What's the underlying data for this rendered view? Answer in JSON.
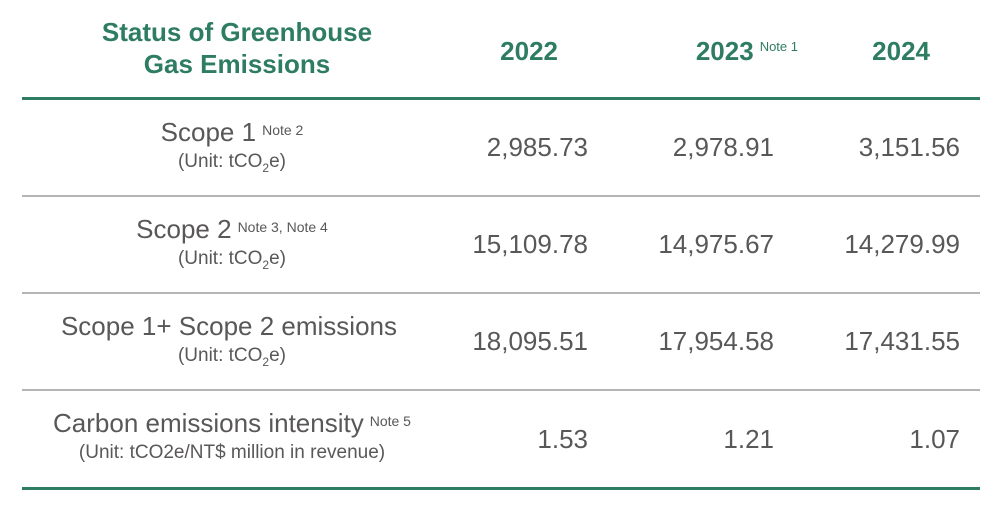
{
  "header": {
    "title_line1": "Status of Greenhouse",
    "title_line2": "Gas Emissions",
    "years": [
      {
        "label": "2022",
        "note": ""
      },
      {
        "label": "2023",
        "note": "Note 1"
      },
      {
        "label": "2024",
        "note": ""
      }
    ]
  },
  "rows": [
    {
      "label": "Scope 1",
      "note": "Note 2",
      "unit_prefix": "(Unit:  tCO",
      "unit_sub": "2",
      "unit_suffix": "e)",
      "values": [
        "2,985.73",
        "2,978.91",
        "3,151.56"
      ]
    },
    {
      "label": "Scope 2",
      "note": "Note 3, Note 4",
      "unit_prefix": "(Unit:  tCO",
      "unit_sub": "2",
      "unit_suffix": "e)",
      "values": [
        "15,109.78",
        "14,975.67",
        "14,279.99"
      ]
    },
    {
      "label": "Scope 1+ Scope 2 emissions",
      "note": "",
      "unit_prefix": "(Unit:  tCO",
      "unit_sub": "2",
      "unit_suffix": "e)",
      "values": [
        "18,095.51",
        "17,954.58",
        "17,431.55"
      ]
    },
    {
      "label": "Carbon emissions intensity",
      "note": "Note 5",
      "unit_prefix": "(Unit:  tCO2e/NT$ million in revenue)",
      "unit_sub": "",
      "unit_suffix": "",
      "values": [
        "1.53",
        "1.21",
        "1.07"
      ]
    }
  ],
  "colors": {
    "accent": "#2e7d62",
    "text": "#595757",
    "divider": "#b5b5b5"
  }
}
